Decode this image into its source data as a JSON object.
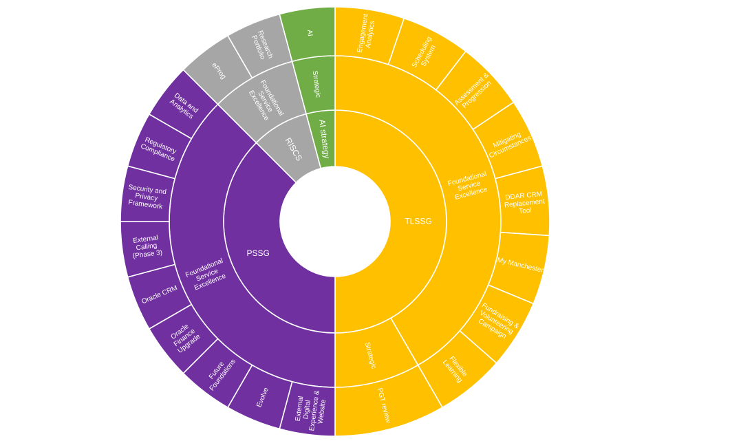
{
  "chart_data": {
    "type": "sunburst",
    "title": "",
    "colors": {
      "TLSSG": "#FFC000",
      "PSSG": "#7030A0",
      "RISCS": "#A6A6A6",
      "AI strategy": "#70AD47"
    },
    "tree": [
      {
        "name": "TLSSG",
        "value": 12,
        "color": "#FFC000",
        "children": [
          {
            "name": "Foundational Service Excellence",
            "value": 10,
            "children": [
              {
                "name": "Engagement Analytics",
                "value": 1
              },
              {
                "name": "Scheduling System",
                "value": 1
              },
              {
                "name": "Assessment & Progression",
                "value": 1
              },
              {
                "name": "Mitigating Circumstances",
                "value": 1
              },
              {
                "name": "DDAR CRM Replacement Tool",
                "value": 1
              },
              {
                "name": "My Manchester",
                "value": 1
              },
              {
                "name": "Fundraising & Volunteering Campaign",
                "value": 1
              },
              {
                "name": "Flexible Learning",
                "value": 1
              }
            ]
          },
          {
            "name": "Strategic",
            "value": 2,
            "children": [
              {
                "name": "PGT review",
                "value": 1
              }
            ]
          }
        ]
      },
      {
        "name": "PSSG",
        "value": 9,
        "color": "#7030A0",
        "children": [
          {
            "name": "Foundational Service Excellence",
            "value": 9,
            "children": [
              {
                "name": "External Digital Experience & Website",
                "value": 1
              },
              {
                "name": "Evolve",
                "value": 1
              },
              {
                "name": "Future Foundations",
                "value": 1
              },
              {
                "name": "Oracle Finance Upgrade",
                "value": 1
              },
              {
                "name": "Oracle CRM",
                "value": 1
              },
              {
                "name": "External Calling (Phase 3)",
                "value": 1
              },
              {
                "name": "Security and Privacy Framework",
                "value": 1
              },
              {
                "name": "Regulatory Compliance",
                "value": 1
              },
              {
                "name": "Data and Analytics",
                "value": 1
              }
            ]
          }
        ]
      },
      {
        "name": "RISCS",
        "value": 2,
        "color": "#A6A6A6",
        "children": [
          {
            "name": "Foundational Service Excellence",
            "value": 2,
            "children": [
              {
                "name": "eProg",
                "value": 1
              },
              {
                "name": "Research Portfolio",
                "value": 1
              }
            ]
          }
        ]
      },
      {
        "name": "AI strategy",
        "value": 1,
        "color": "#70AD47",
        "children": [
          {
            "name": "Strategic",
            "value": 1,
            "children": [
              {
                "name": "AI",
                "value": 1
              }
            ]
          }
        ]
      }
    ]
  }
}
